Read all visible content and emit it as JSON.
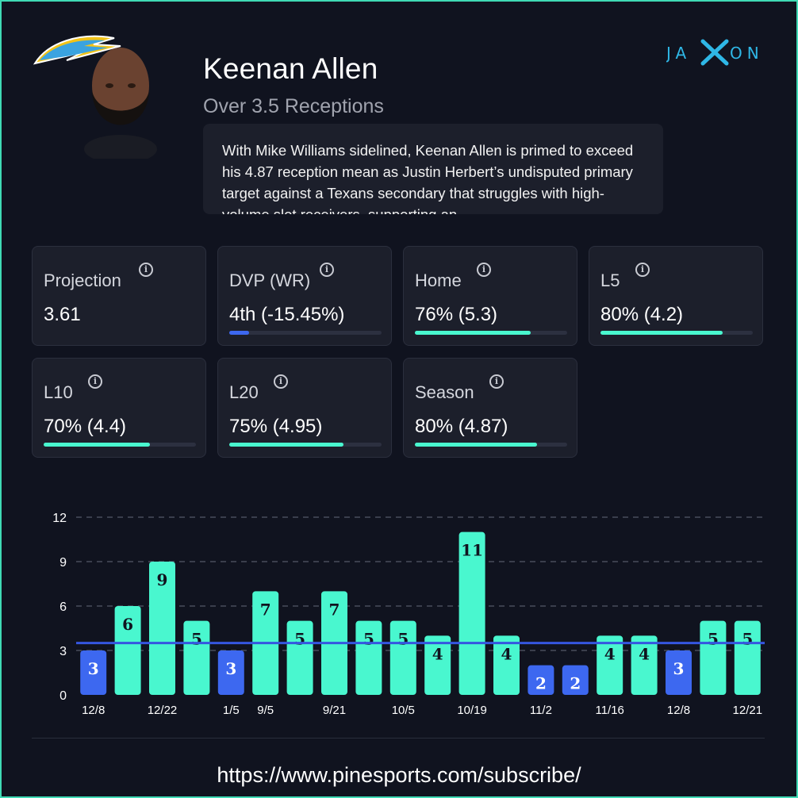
{
  "header": {
    "player_name": "Keenan Allen",
    "prop": "Over 3.5 Receptions",
    "summary": "With Mike Williams sidelined, Keenan Allen is primed to exceed his 4.87 reception mean as Justin Herbert’s undisputed primary target against a Texans secondary that struggles with high-volume slot receivers, supporting an"
  },
  "brand": {
    "logo_icon": "jaxon-logo-icon",
    "team_logo_icon": "chargers-bolt-icon",
    "headshot_icon": "player-headshot-icon"
  },
  "colors": {
    "hit": "#49f7cf",
    "miss": "#3d68f0",
    "line": "#3556e0",
    "accent": "#3fd9b4",
    "background": "#10131f",
    "card": "#1c1f2b"
  },
  "stats": [
    {
      "label": "Projection",
      "value": "3.61"
    },
    {
      "label": "DVP (WR)",
      "value": "4th (-15.45%)",
      "fill": 0.13,
      "tone": "low"
    },
    {
      "label": "Home",
      "value": "76% (5.3)",
      "fill": 0.76,
      "tone": "hit"
    },
    {
      "label": "L5",
      "value": "80% (4.2)",
      "fill": 0.8,
      "tone": "hit"
    },
    {
      "label": "L10",
      "value": "70% (4.4)",
      "fill": 0.7,
      "tone": "hit"
    },
    {
      "label": "L20",
      "value": "75% (4.95)",
      "fill": 0.75,
      "tone": "hit"
    },
    {
      "label": "Season",
      "value": "80% (4.87)",
      "fill": 0.8,
      "tone": "hit"
    }
  ],
  "chart_data": {
    "type": "bar",
    "categories": [
      "12/8",
      "",
      "12/22",
      "",
      "1/5",
      "9/5",
      "",
      "9/21",
      "",
      "10/5",
      "",
      "10/19",
      "",
      "11/2",
      "",
      "11/16",
      "",
      "12/8",
      "",
      "12/21"
    ],
    "values": [
      3,
      6,
      9,
      5,
      3,
      7,
      5,
      7,
      5,
      5,
      4,
      11,
      4,
      2,
      2,
      4,
      4,
      3,
      5,
      5
    ],
    "ylim": [
      0,
      12
    ],
    "yticks": [
      0,
      3,
      6,
      9,
      12
    ],
    "threshold": 3.5,
    "grid": true,
    "title": "",
    "xlabel": "",
    "ylabel": ""
  },
  "footer": {
    "url": "https://www.pinesports.com/subscribe/"
  }
}
